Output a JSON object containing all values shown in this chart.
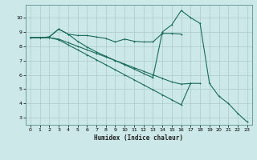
{
  "xlabel": "Humidex (Indice chaleur)",
  "bg_color": "#cce8e8",
  "grid_color": "#aacccc",
  "line_color": "#1a6b5a",
  "xlim": [
    -0.5,
    23.5
  ],
  "ylim": [
    2.5,
    10.9
  ],
  "yticks": [
    3,
    4,
    5,
    6,
    7,
    8,
    9,
    10
  ],
  "xticks": [
    0,
    1,
    2,
    3,
    4,
    5,
    6,
    7,
    8,
    9,
    10,
    11,
    12,
    13,
    14,
    15,
    16,
    17,
    18,
    19,
    20,
    21,
    22,
    23
  ],
  "line1_x": [
    0,
    1,
    2,
    3,
    4,
    5,
    6,
    7,
    8,
    9,
    10,
    11,
    12,
    13,
    14,
    15,
    16
  ],
  "line1_y": [
    8.6,
    8.6,
    8.65,
    9.2,
    8.85,
    8.75,
    8.75,
    8.65,
    8.55,
    8.3,
    8.5,
    8.35,
    8.3,
    8.3,
    8.9,
    8.9,
    8.85
  ],
  "line2_x": [
    0,
    1,
    2,
    3,
    4,
    5,
    6,
    7,
    8,
    9,
    10,
    11,
    12,
    13,
    14,
    15,
    16,
    17,
    18
  ],
  "line2_y": [
    8.6,
    8.6,
    8.6,
    8.5,
    8.25,
    8.0,
    7.75,
    7.5,
    7.25,
    7.0,
    6.75,
    6.5,
    6.25,
    6.0,
    5.75,
    5.5,
    5.35,
    5.4,
    5.4
  ],
  "line3_x": [
    0,
    1,
    2,
    3,
    4,
    5,
    6,
    7,
    8,
    9,
    10,
    11,
    12,
    13,
    14,
    15,
    16,
    17
  ],
  "line3_y": [
    8.6,
    8.6,
    8.6,
    8.45,
    8.1,
    7.75,
    7.4,
    7.05,
    6.7,
    6.35,
    6.0,
    5.65,
    5.3,
    4.95,
    4.6,
    4.25,
    3.9,
    5.4
  ],
  "line4_x": [
    0,
    1,
    2,
    3,
    4,
    5,
    6,
    7,
    8,
    9,
    10,
    11,
    12,
    13,
    14,
    15,
    16,
    17,
    18,
    19,
    20,
    21,
    22,
    23
  ],
  "line4_y": [
    8.6,
    8.6,
    8.65,
    9.2,
    8.85,
    8.35,
    7.95,
    7.6,
    7.3,
    7.0,
    6.7,
    6.4,
    6.1,
    5.8,
    9.0,
    9.5,
    10.5,
    10.0,
    9.6,
    5.4,
    4.5,
    4.0,
    3.3,
    2.7
  ]
}
